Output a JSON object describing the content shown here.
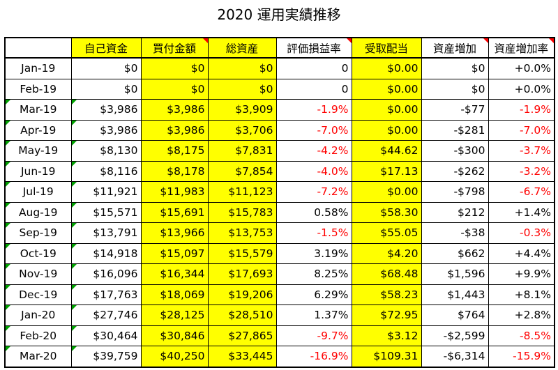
{
  "title": "2020 運用実績推移",
  "headers": [
    "",
    "自己資金",
    "買付金額",
    "総資産",
    "評価損益率",
    "受取配当",
    "資産増加",
    "資産増加率"
  ],
  "rows": [
    {
      "month": "Jan-19",
      "own": "$0",
      "buy": "$0",
      "total": "$0",
      "eval": "0",
      "div": "$0.00",
      "inc": "$0",
      "rate": "+0.0%"
    },
    {
      "month": "Feb-19",
      "own": "$0",
      "buy": "$0",
      "total": "$0",
      "eval": "0",
      "div": "$0.00",
      "inc": "$0",
      "rate": "+0.0%"
    },
    {
      "month": "Mar-19",
      "own": "$3,986",
      "buy": "$3,986",
      "total": "$3,909",
      "eval": "-1.9%",
      "div": "$0.00",
      "inc": "-$77",
      "rate": "-1.9%"
    },
    {
      "month": "Apr-19",
      "own": "$3,986",
      "buy": "$3,986",
      "total": "$3,706",
      "eval": "-7.0%",
      "div": "$0.00",
      "inc": "-$281",
      "rate": "-7.0%"
    },
    {
      "month": "May-19",
      "own": "$8,130",
      "buy": "$8,175",
      "total": "$7,831",
      "eval": "-4.2%",
      "div": "$44.62",
      "inc": "-$300",
      "rate": "-3.7%"
    },
    {
      "month": "Jun-19",
      "own": "$8,116",
      "buy": "$8,178",
      "total": "$7,854",
      "eval": "-4.0%",
      "div": "$17.13",
      "inc": "-$262",
      "rate": "-3.2%"
    },
    {
      "month": "Jul-19",
      "own": "$11,921",
      "buy": "$11,983",
      "total": "$11,123",
      "eval": "-7.2%",
      "div": "$0.00",
      "inc": "-$798",
      "rate": "-6.7%"
    },
    {
      "month": "Aug-19",
      "own": "$15,571",
      "buy": "$15,691",
      "total": "$15,783",
      "eval": "0.58%",
      "div": "$58.30",
      "inc": "$212",
      "rate": "+1.4%"
    },
    {
      "month": "Sep-19",
      "own": "$13,791",
      "buy": "$13,966",
      "total": "$13,753",
      "eval": "-1.5%",
      "div": "$55.05",
      "inc": "-$38",
      "rate": "-0.3%"
    },
    {
      "month": "Oct-19",
      "own": "$14,918",
      "buy": "$15,097",
      "total": "$15,579",
      "eval": "3.19%",
      "div": "$4.20",
      "inc": "$662",
      "rate": "+4.4%"
    },
    {
      "month": "Nov-19",
      "own": "$16,096",
      "buy": "$16,344",
      "total": "$17,693",
      "eval": "8.25%",
      "div": "$68.48",
      "inc": "$1,596",
      "rate": "+9.9%"
    },
    {
      "month": "Dec-19",
      "own": "$17,763",
      "buy": "$18,069",
      "total": "$19,206",
      "eval": "6.29%",
      "div": "$58.23",
      "inc": "$1,443",
      "rate": "+8.1%"
    },
    {
      "month": "Jan-20",
      "own": "$27,746",
      "buy": "$28,125",
      "total": "$28,510",
      "eval": "1.37%",
      "div": "$72.95",
      "inc": "$764",
      "rate": "+2.8%"
    },
    {
      "month": "Feb-20",
      "own": "$30,464",
      "buy": "$30,846",
      "total": "$27,865",
      "eval": "-9.7%",
      "div": "$3.12",
      "inc": "-$2,599",
      "rate": "-8.5%"
    },
    {
      "month": "Mar-20",
      "own": "$39,759",
      "buy": "$40,250",
      "total": "$33,445",
      "eval": "-16.9%",
      "div": "$109.31",
      "inc": "-$6,314",
      "rate": "-15.9%"
    }
  ],
  "colors": {
    "highlight": "#ffff00",
    "negative": "#ff0000",
    "comment_marker": "#ff0000",
    "error_marker": "#00a000"
  }
}
